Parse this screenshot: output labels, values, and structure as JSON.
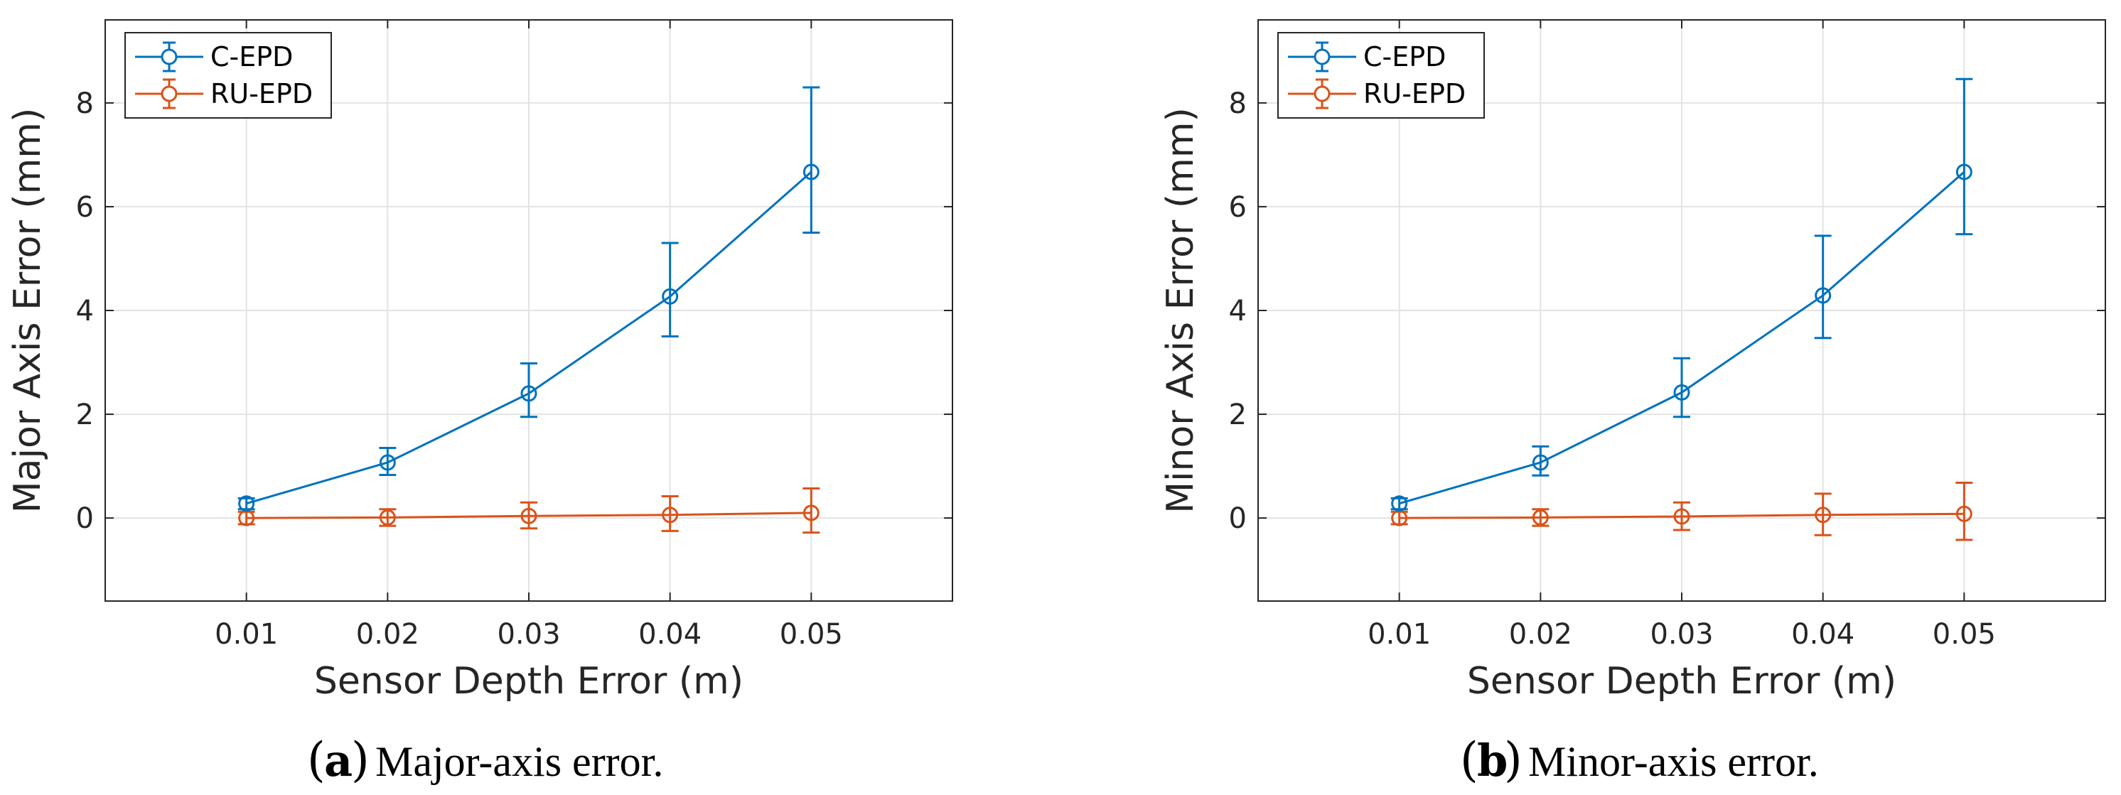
{
  "chart_data": [
    {
      "type": "line",
      "panel_letter": "a",
      "caption": "Major-axis error.",
      "xlabel": "Sensor Depth Error (m)",
      "ylabel": "Major Axis Error (mm)",
      "x": [
        0.01,
        0.02,
        0.03,
        0.04,
        0.05
      ],
      "x_tick_labels": [
        "0.01",
        "0.02",
        "0.03",
        "0.04",
        "0.05"
      ],
      "xlim": [
        0,
        0.06
      ],
      "ylim": [
        -1.6,
        9.6
      ],
      "y_ticks": [
        0,
        2,
        4,
        6,
        8
      ],
      "y_tick_labels": [
        "0",
        "2",
        "4",
        "6",
        "8"
      ],
      "grid": true,
      "legend_position": "top-left",
      "series": [
        {
          "name": "C-EPD",
          "color": "#0072BD",
          "values": [
            0.28,
            1.07,
            2.4,
            4.27,
            6.67
          ],
          "err_low": [
            0.17,
            0.83,
            1.95,
            3.5,
            5.5
          ],
          "err_high": [
            0.38,
            1.35,
            2.98,
            5.3,
            8.3
          ]
        },
        {
          "name": "RU-EPD",
          "color": "#D95319",
          "values": [
            0.0,
            0.01,
            0.04,
            0.06,
            0.1
          ],
          "err_low": [
            -0.12,
            -0.15,
            -0.2,
            -0.25,
            -0.28
          ],
          "err_high": [
            0.12,
            0.17,
            0.3,
            0.42,
            0.57
          ]
        }
      ]
    },
    {
      "type": "line",
      "panel_letter": "b",
      "caption": "Minor-axis error.",
      "xlabel": "Sensor Depth Error (m)",
      "ylabel": "Minor Axis Error (mm)",
      "x": [
        0.01,
        0.02,
        0.03,
        0.04,
        0.05
      ],
      "x_tick_labels": [
        "0.01",
        "0.02",
        "0.03",
        "0.04",
        "0.05"
      ],
      "xlim": [
        0,
        0.06
      ],
      "ylim": [
        -1.6,
        9.6
      ],
      "y_ticks": [
        0,
        2,
        4,
        6,
        8
      ],
      "y_tick_labels": [
        "0",
        "2",
        "4",
        "6",
        "8"
      ],
      "grid": true,
      "legend_position": "top-left",
      "series": [
        {
          "name": "C-EPD",
          "color": "#0072BD",
          "values": [
            0.28,
            1.07,
            2.42,
            4.29,
            6.67
          ],
          "err_low": [
            0.17,
            0.82,
            1.95,
            3.47,
            5.47
          ],
          "err_high": [
            0.38,
            1.38,
            3.08,
            5.44,
            8.46
          ]
        },
        {
          "name": "RU-EPD",
          "color": "#D95319",
          "values": [
            0.0,
            0.01,
            0.03,
            0.06,
            0.08
          ],
          "err_low": [
            -0.12,
            -0.15,
            -0.23,
            -0.33,
            -0.42
          ],
          "err_high": [
            0.12,
            0.17,
            0.3,
            0.47,
            0.68
          ]
        }
      ]
    }
  ]
}
